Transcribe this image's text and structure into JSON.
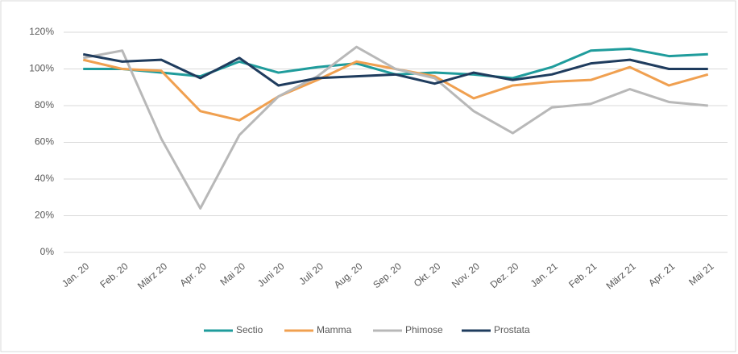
{
  "chart_data": {
    "type": "line",
    "categories": [
      "Jan. 20",
      "Feb. 20",
      "März 20",
      "Apr. 20",
      "Mai 20",
      "Juni 20",
      "Juli 20",
      "Aug. 20",
      "Sep. 20",
      "Okt. 20",
      "Nov. 20",
      "Dez. 20",
      "Jan. 21",
      "Feb. 21",
      "März 21",
      "Apr. 21",
      "Mai 21"
    ],
    "series": [
      {
        "name": "Sectio",
        "color": "#1f9c9c",
        "values": [
          100,
          100,
          98,
          96,
          104,
          98,
          101,
          103,
          97,
          98,
          97,
          95,
          101,
          110,
          111,
          107,
          108
        ]
      },
      {
        "name": "Mamma",
        "color": "#f0a050",
        "values": [
          105,
          100,
          99,
          77,
          72,
          85,
          94,
          104,
          100,
          96,
          84,
          91,
          93,
          94,
          101,
          91,
          97
        ]
      },
      {
        "name": "Phimose",
        "color": "#b8b8b8",
        "values": [
          106,
          110,
          62,
          24,
          64,
          85,
          96,
          112,
          100,
          95,
          77,
          65,
          79,
          81,
          89,
          82,
          80
        ]
      },
      {
        "name": "Prostata",
        "color": "#1f3c5e",
        "values": [
          108,
          104,
          105,
          95,
          106,
          91,
          95,
          96,
          97,
          92,
          98,
          94,
          97,
          103,
          105,
          100,
          100
        ]
      }
    ],
    "ylim": [
      0,
      120
    ],
    "yticks": [
      {
        "value": 0,
        "label": "0%"
      },
      {
        "value": 20,
        "label": "20%"
      },
      {
        "value": 40,
        "label": "40%"
      },
      {
        "value": 60,
        "label": "60%"
      },
      {
        "value": 80,
        "label": "80%"
      },
      {
        "value": 100,
        "label": "100%"
      },
      {
        "value": 120,
        "label": "120%"
      }
    ],
    "grid": true,
    "legend": "bottom"
  }
}
